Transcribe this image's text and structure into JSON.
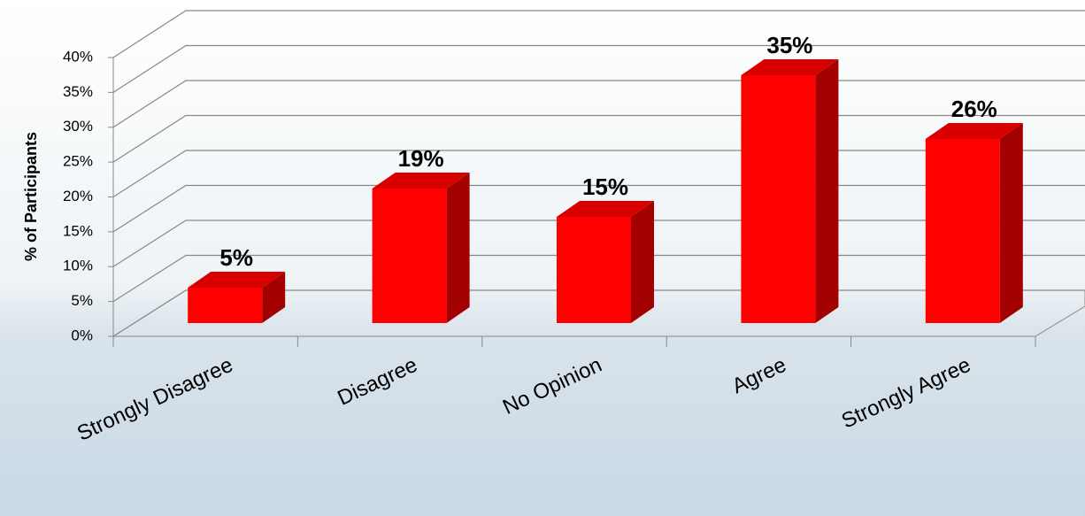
{
  "chart_data": {
    "type": "bar3d",
    "y_label": "% of Participants",
    "categories": [
      "Strongly Disagree",
      "Disagree",
      "No Opinion",
      "Agree",
      "Strongly Agree"
    ],
    "values": [
      5,
      19,
      15,
      35,
      26
    ],
    "value_labels": [
      "5%",
      "19%",
      "15%",
      "35%",
      "26%"
    ],
    "color": "#ff0000",
    "ylim": [
      0,
      40
    ],
    "yticks": [
      {
        "value": 0,
        "label": "0%"
      },
      {
        "value": 5,
        "label": "5%"
      },
      {
        "value": 10,
        "label": "10%"
      },
      {
        "value": 15,
        "label": "15%"
      },
      {
        "value": 20,
        "label": "20%"
      },
      {
        "value": 25,
        "label": "25%"
      },
      {
        "value": 30,
        "label": "30%"
      },
      {
        "value": 35,
        "label": "35%"
      },
      {
        "value": 40,
        "label": "40%"
      }
    ],
    "grid": true
  }
}
